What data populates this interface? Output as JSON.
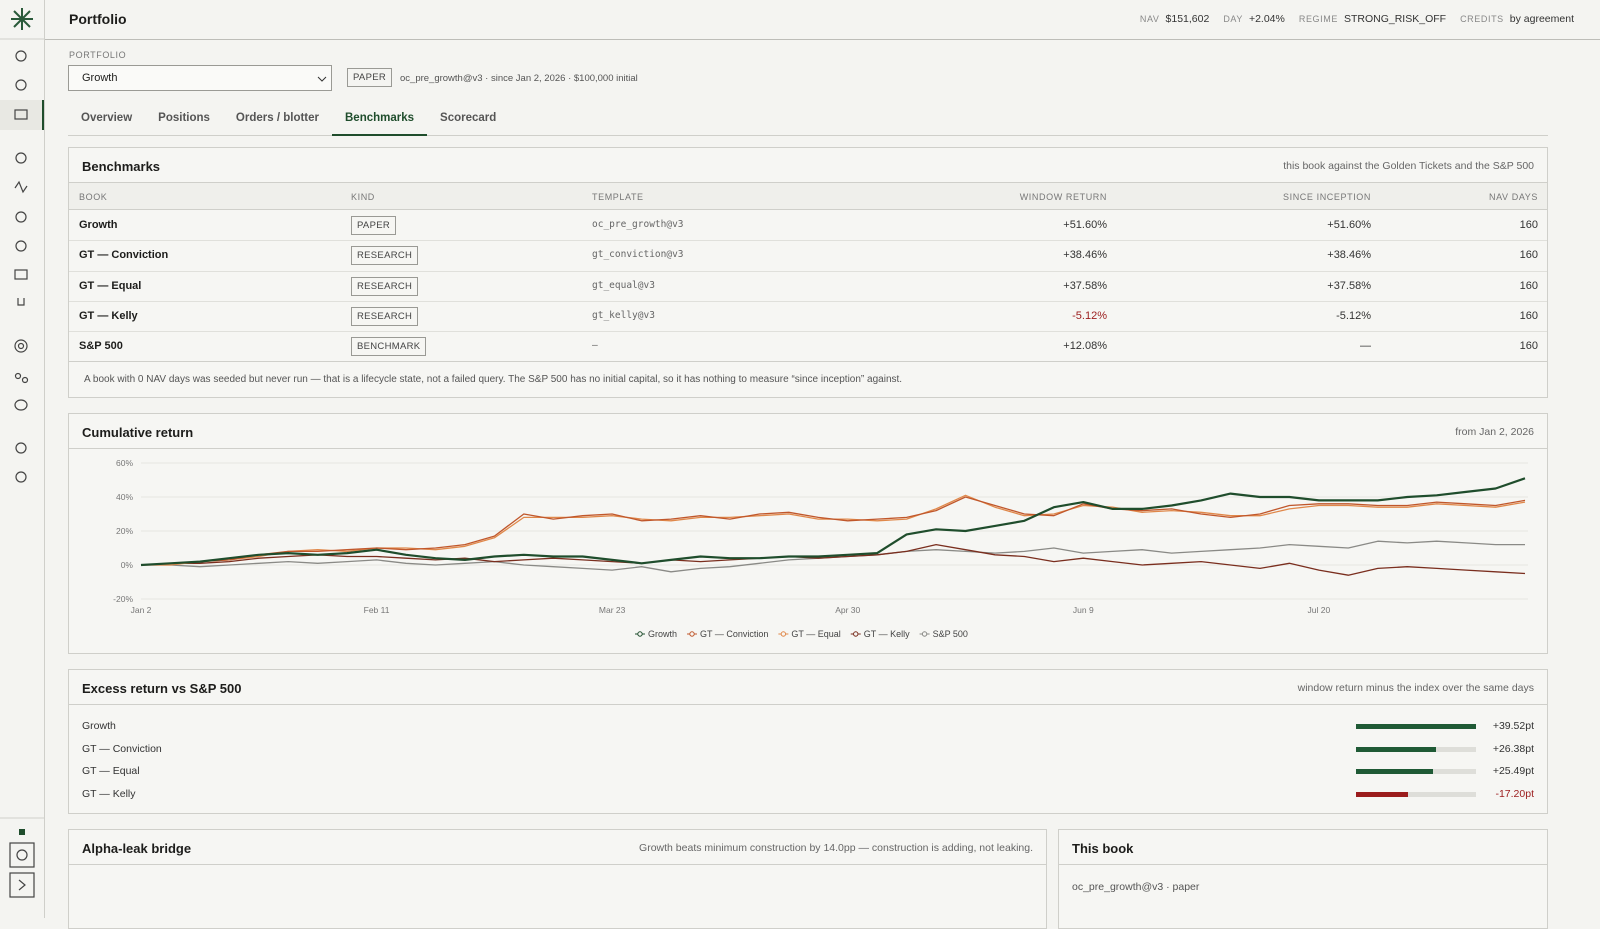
{
  "header": {
    "title": "Portfolio",
    "stats": [
      {
        "label": "NAV",
        "value": "$151,602"
      },
      {
        "label": "DAY",
        "value": "+2.04%"
      },
      {
        "label": "REGIME",
        "value": "STRONG_RISK_OFF"
      },
      {
        "label": "CREDITS",
        "value": "by agreement"
      }
    ]
  },
  "selector": {
    "label": "PORTFOLIO",
    "value": "Growth",
    "badge": "PAPER",
    "meta": "oc_pre_growth@v3 · since Jan 2, 2026 · $100,000 initial"
  },
  "tabs": [
    "Overview",
    "Positions",
    "Orders / blotter",
    "Benchmarks",
    "Scorecard"
  ],
  "active_tab": 3,
  "benchmarks": {
    "title": "Benchmarks",
    "subtitle": "this book against the Golden Tickets and the S&P 500",
    "columns": [
      "BOOK",
      "KIND",
      "TEMPLATE",
      "WINDOW RETURN",
      "SINCE INCEPTION",
      "NAV DAYS"
    ],
    "rows": [
      [
        "Growth",
        "PAPER",
        "oc_pre_growth@v3",
        "+51.60%",
        "+51.60%",
        "160"
      ],
      [
        "GT — Conviction",
        "RESEARCH",
        "gt_conviction@v3",
        "+38.46%",
        "+38.46%",
        "160"
      ],
      [
        "GT — Equal",
        "RESEARCH",
        "gt_equal@v3",
        "+37.58%",
        "+37.58%",
        "160"
      ],
      [
        "GT — Kelly",
        "RESEARCH",
        "gt_kelly@v3",
        "-5.12%",
        "-5.12%",
        "160"
      ],
      [
        "S&P 500",
        "BENCHMARK",
        "—",
        "+12.08%",
        "—",
        "160"
      ]
    ],
    "note": "A book with 0 NAV days was seeded but never run — that is a lifecycle state, not a failed query. The S&P 500 has no initial capital, so it has nothing to measure “since inception” against."
  },
  "chart_data": {
    "type": "line",
    "title": "Cumulative return",
    "subtitle": "from Jan 2, 2026",
    "categories": [
      "Jan 2",
      null,
      null,
      null,
      null,
      null,
      null,
      null,
      "Feb 11",
      null,
      null,
      null,
      null,
      null,
      null,
      null,
      "Mar 23",
      null,
      null,
      null,
      null,
      null,
      null,
      null,
      "Apr 30",
      null,
      null,
      null,
      null,
      null,
      null,
      null,
      "Jun 9",
      null,
      null,
      null,
      null,
      null,
      null,
      null,
      "Jul 20",
      null,
      null,
      null,
      null,
      null,
      null,
      null
    ],
    "ylim": [
      -20,
      60
    ],
    "yticks": [
      {
        "value": -20,
        "label": "-20%"
      },
      {
        "value": 0,
        "label": "0%"
      },
      {
        "value": 20,
        "label": "20%"
      },
      {
        "value": 40,
        "label": "40%"
      },
      {
        "value": 60,
        "label": "60%"
      }
    ],
    "grid": true,
    "series": [
      {
        "name": "Growth",
        "color": "#1f4d2c",
        "values": [
          0,
          1,
          2,
          4,
          6,
          7,
          6,
          7,
          9,
          6,
          4,
          3,
          5,
          6,
          5,
          5,
          3,
          1,
          3,
          5,
          4,
          4,
          5,
          5,
          6,
          7,
          18,
          21,
          20,
          23,
          26,
          34,
          37,
          33,
          33,
          35,
          38,
          42,
          40,
          40,
          38,
          38,
          38,
          40,
          41,
          43,
          45,
          51
        ]
      },
      {
        "name": "GT — Conviction",
        "color": "#c0572b",
        "values": [
          0,
          1,
          2,
          3,
          6,
          8,
          8,
          9,
          10,
          9,
          10,
          12,
          17,
          30,
          27,
          29,
          30,
          26,
          27,
          29,
          27,
          30,
          31,
          28,
          26,
          27,
          28,
          32,
          40,
          35,
          30,
          29,
          36,
          33,
          32,
          33,
          30,
          28,
          30,
          35,
          36,
          36,
          35,
          35,
          37,
          36,
          35,
          38
        ]
      },
      {
        "name": "GT — Equal",
        "color": "#e0884a",
        "values": [
          0,
          0,
          2,
          3,
          5,
          8,
          9,
          8,
          10,
          10,
          9,
          11,
          16,
          28,
          28,
          28,
          29,
          27,
          26,
          28,
          28,
          29,
          30,
          27,
          27,
          26,
          27,
          33,
          41,
          34,
          29,
          30,
          35,
          34,
          31,
          32,
          31,
          29,
          29,
          33,
          35,
          35,
          34,
          34,
          36,
          35,
          34,
          37
        ]
      },
      {
        "name": "GT — Kelly",
        "color": "#7a2e1e",
        "values": [
          0,
          1,
          1,
          2,
          4,
          5,
          6,
          5,
          5,
          4,
          3,
          4,
          2,
          3,
          4,
          3,
          2,
          1,
          3,
          2,
          3,
          4,
          5,
          4,
          5,
          6,
          8,
          12,
          9,
          6,
          5,
          2,
          4,
          2,
          0,
          1,
          2,
          0,
          -2,
          1,
          -3,
          -6,
          -2,
          -1,
          -2,
          -3,
          -4,
          -5
        ]
      },
      {
        "name": "S&P 500",
        "color": "#8a8a86",
        "values": [
          0,
          0,
          -1,
          0,
          1,
          2,
          1,
          2,
          3,
          1,
          0,
          1,
          2,
          0,
          -1,
          -2,
          -3,
          -1,
          -4,
          -2,
          -1,
          1,
          3,
          4,
          5,
          6,
          8,
          9,
          8,
          7,
          8,
          10,
          7,
          8,
          9,
          7,
          8,
          9,
          10,
          12,
          11,
          10,
          14,
          13,
          14,
          13,
          12,
          12
        ]
      }
    ]
  },
  "excess": {
    "title": "Excess return vs S&P 500",
    "subtitle": "window return minus the index over the same days",
    "categories": [
      "Growth",
      "GT — Conviction",
      "GT — Equal",
      "GT — Kelly"
    ],
    "values": [
      39.52,
      26.38,
      25.49,
      -17.2
    ],
    "value_labels": [
      "+39.52pt",
      "+26.38pt",
      "+25.49pt",
      "-17.20pt"
    ],
    "colors": {
      "positive": "#1f5a35",
      "negative": "#9b1c1c"
    }
  },
  "alpha_leak": {
    "title": "Alpha-leak bridge",
    "subtitle": "Growth beats minimum construction by 14.0pp — construction is adding, not leaking."
  },
  "this_book": {
    "title": "This book",
    "text": "oc_pre_growth@v3 · paper"
  }
}
